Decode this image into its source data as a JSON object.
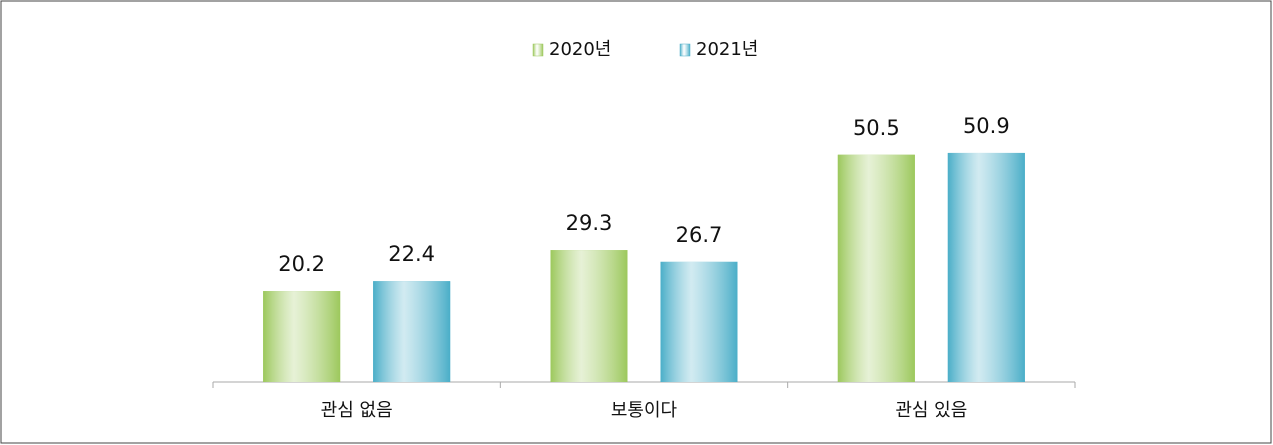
{
  "chart_data": {
    "type": "bar",
    "categories": [
      "관심 없음",
      "보통이다",
      "관심 있음"
    ],
    "series": [
      {
        "name": "2020년",
        "color": "#9cc85c",
        "values": [
          20.2,
          29.3,
          50.5
        ]
      },
      {
        "name": "2021년",
        "color": "#4aaec8",
        "values": [
          22.4,
          26.7,
          50.9
        ]
      }
    ],
    "ylim": [
      0,
      60
    ]
  }
}
